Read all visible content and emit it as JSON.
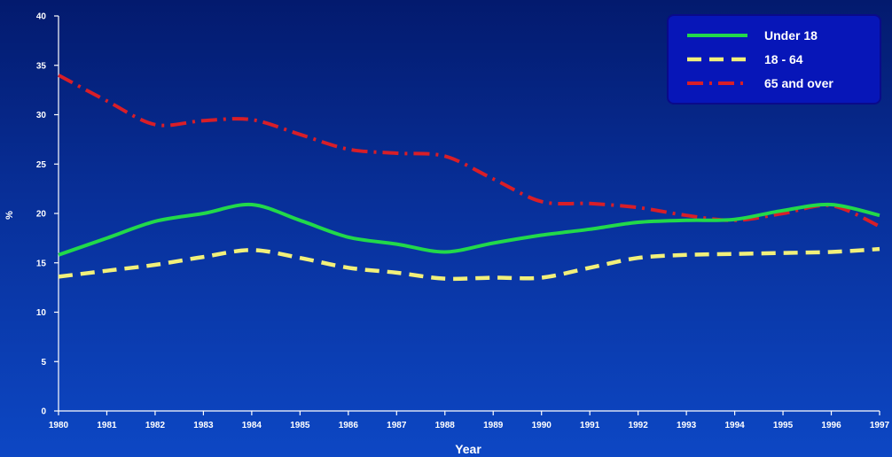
{
  "chart_data": {
    "type": "line",
    "title": "",
    "xlabel": "Year",
    "ylabel": "%",
    "x": [
      1980,
      1981,
      1982,
      1983,
      1984,
      1985,
      1986,
      1987,
      1988,
      1989,
      1990,
      1991,
      1992,
      1993,
      1994,
      1995,
      1996,
      1997
    ],
    "x_tick_labels": [
      "1980",
      "1981",
      "1982",
      "1983",
      "1984",
      "1985",
      "1986",
      "1987",
      "1988",
      "1989",
      "1990",
      "1991",
      "1992",
      "1993",
      "1994",
      "1995",
      "1996",
      "1997"
    ],
    "y_ticks": [
      0,
      5,
      10,
      15,
      20,
      25,
      30,
      35,
      40
    ],
    "y_tick_labels": [
      "0",
      "5",
      "10",
      "15",
      "20",
      "25",
      "30",
      "35",
      "40"
    ],
    "xlim": [
      1980,
      1997
    ],
    "ylim": [
      0,
      40
    ],
    "grid": false,
    "legend_position": "top-right",
    "series": [
      {
        "name": "Under 18",
        "color": "#22d94a",
        "style": "solid",
        "values": [
          15.8,
          17.5,
          19.2,
          20.0,
          20.9,
          19.3,
          17.6,
          16.9,
          16.1,
          17.0,
          17.8,
          18.4,
          19.1,
          19.3,
          19.4,
          20.3,
          20.9,
          19.8
        ]
      },
      {
        "name": "18 - 64",
        "color": "#f2f07a",
        "style": "dashed",
        "values": [
          13.6,
          14.2,
          14.8,
          15.6,
          16.3,
          15.5,
          14.5,
          14.0,
          13.4,
          13.5,
          13.5,
          14.5,
          15.5,
          15.8,
          15.9,
          16.0,
          16.1,
          16.4
        ]
      },
      {
        "name": "65 and over",
        "color": "#d81e28",
        "style": "dashdot",
        "values": [
          34.0,
          31.4,
          29.0,
          29.4,
          29.5,
          28.0,
          26.5,
          26.1,
          25.8,
          23.5,
          21.2,
          21.0,
          20.6,
          19.8,
          19.3,
          20.0,
          20.8,
          18.7
        ]
      }
    ]
  }
}
